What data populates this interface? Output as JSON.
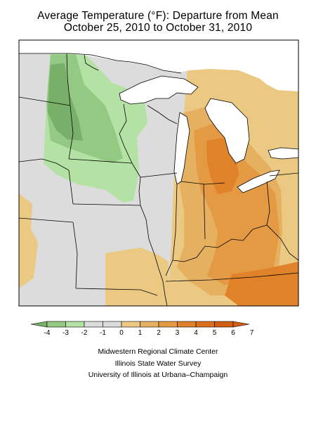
{
  "title": {
    "line1": "Average Temperature (°F): Departure from Mean",
    "line2": "October 25, 2010 to October 31, 2010"
  },
  "legend": {
    "labels": [
      "-4",
      "-3",
      "-2",
      "-1",
      "0",
      "1",
      "2",
      "3",
      "4",
      "5",
      "6",
      "7"
    ],
    "colors": [
      "#78b069",
      "#93c983",
      "#b4e2a4",
      "#dcdcdc",
      "#dcdcdc",
      "#ebc982",
      "#e6b061",
      "#e39a42",
      "#e0822a",
      "#db6f1c",
      "#d25e12"
    ]
  },
  "map_colors": {
    "cool_1": "#b4e2a4",
    "cool_2": "#93c983",
    "cool_3": "#78b069",
    "neutral": "#dcdcdc",
    "warm_1": "#ebc982",
    "warm_2": "#e6b061",
    "warm_3": "#e39a42",
    "warm_4": "#e0822a",
    "lake": "#ffffff",
    "border": "#000000"
  },
  "credits": {
    "line1": "Midwestern Regional Climate Center",
    "line2": "Illinois State Water Survey",
    "line3": "University of Illinois at Urbana–Champaign"
  }
}
